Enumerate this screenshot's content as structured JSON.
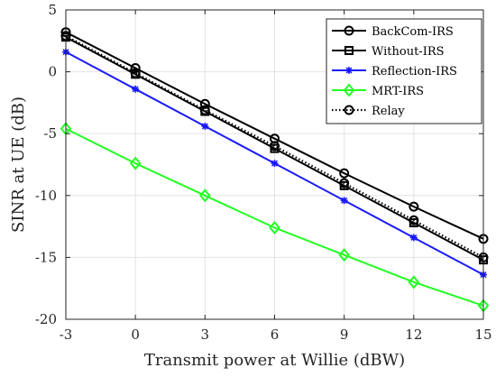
{
  "chart_data": {
    "type": "line",
    "xlabel": "Transmit power at Willie (dBW)",
    "ylabel": "SINR at UE (dB)",
    "x": [
      -3,
      0,
      3,
      6,
      9,
      12,
      15
    ],
    "xlim": [
      -3,
      15
    ],
    "ylim": [
      -20,
      5
    ],
    "xticks": [
      "-3",
      "0",
      "3",
      "6",
      "9",
      "12",
      "15"
    ],
    "yticks": [
      "5",
      "0",
      "-5",
      "-10",
      "-15",
      "-20"
    ],
    "grid": true,
    "legend_position": "top-right",
    "series": [
      {
        "name": "BackCom-IRS",
        "values": [
          3.2,
          0.3,
          -2.6,
          -5.4,
          -8.2,
          -10.9,
          -13.5
        ],
        "color": "#000000",
        "marker": "circle",
        "dash": "solid"
      },
      {
        "name": "Without-IRS",
        "values": [
          2.8,
          -0.2,
          -3.2,
          -6.2,
          -9.2,
          -12.2,
          -15.2
        ],
        "color": "#000000",
        "marker": "square",
        "dash": "solid"
      },
      {
        "name": "Reflection-IRS",
        "values": [
          1.6,
          -1.4,
          -4.4,
          -7.4,
          -10.4,
          -13.4,
          -16.4
        ],
        "color": "#1a1aff",
        "marker": "star",
        "dash": "solid"
      },
      {
        "name": "MRT-IRS",
        "values": [
          -4.6,
          -7.4,
          -10.0,
          -12.6,
          -14.8,
          -17.0,
          -18.9
        ],
        "color": "#22ff22",
        "marker": "diamond",
        "dash": "solid"
      },
      {
        "name": "Relay",
        "values": [
          2.9,
          -0.1,
          -3.1,
          -6.0,
          -9.0,
          -12.0,
          -15.0
        ],
        "color": "#000000",
        "marker": "circle",
        "dash": "dotted"
      }
    ]
  }
}
